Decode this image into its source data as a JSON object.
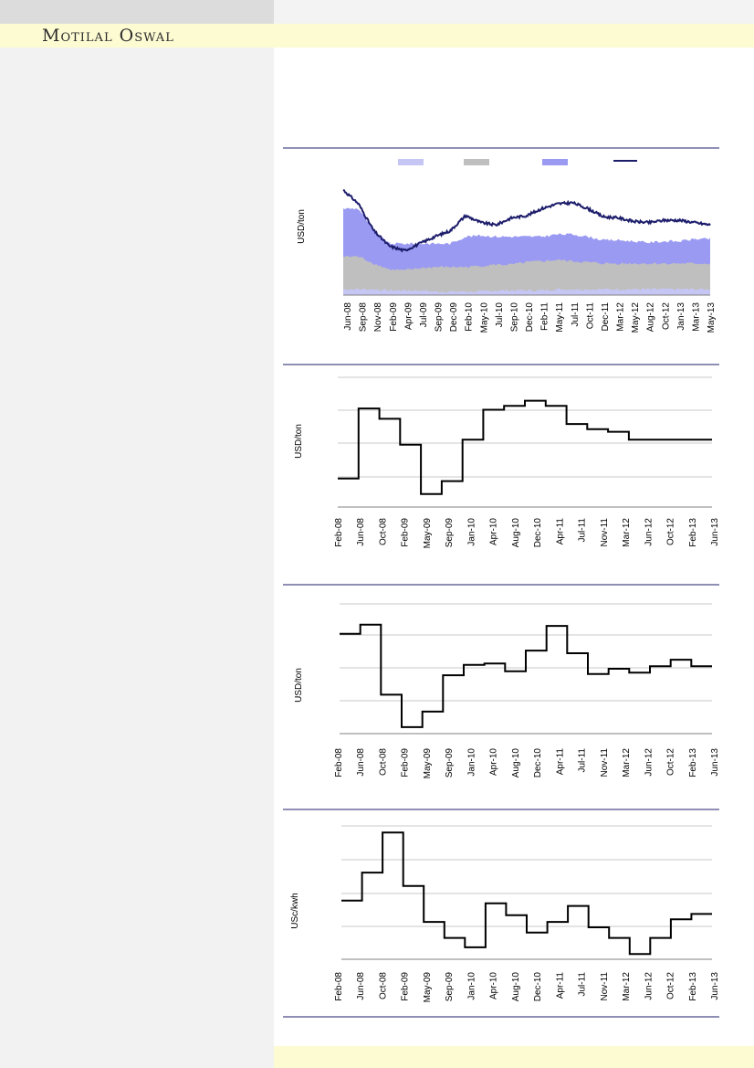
{
  "brand": {
    "name": "Motilal Oswal"
  },
  "colors": {
    "rule": "#1f1f6e",
    "grid": "#c8c8c8",
    "series_light": "#c6c6f5",
    "series_grey": "#bfbfbf",
    "series_blue": "#9a9af2",
    "series_navy": "#1c1c6b",
    "step_line": "#000000"
  },
  "chart_data": [
    {
      "type": "area",
      "ylabel": "USD/ton",
      "legend_position": "top",
      "grid": false,
      "categories": [
        "Jun-08",
        "Sep-08",
        "Nov-08",
        "Feb-09",
        "Apr-09",
        "Jul-09",
        "Sep-09",
        "Dec-09",
        "Feb-10",
        "May-10",
        "Jul-10",
        "Sep-10",
        "Dec-10",
        "Feb-11",
        "May-11",
        "Jul-11",
        "Oct-11",
        "Dec-11",
        "Mar-12",
        "May-12",
        "Aug-12",
        "Oct-12",
        "Jan-13",
        "Mar-13",
        "May-13"
      ],
      "ylim": [
        0,
        100
      ],
      "series": [
        {
          "kind": "area",
          "values": [
            5,
            5,
            5,
            4,
            4,
            4,
            3,
            3,
            3,
            3,
            4,
            4,
            4,
            4,
            5,
            5,
            5,
            5,
            5,
            5,
            5,
            5,
            5,
            5,
            5
          ]
        },
        {
          "kind": "area",
          "values": [
            33,
            33,
            27,
            22,
            21,
            23,
            24,
            24,
            24,
            25,
            26,
            26,
            28,
            29,
            30,
            29,
            28,
            27,
            27,
            27,
            27,
            27,
            27,
            27,
            27
          ]
        },
        {
          "kind": "area",
          "values": [
            74,
            74,
            55,
            44,
            44,
            44,
            44,
            44,
            50,
            51,
            50,
            50,
            50,
            50,
            52,
            52,
            50,
            47,
            47,
            46,
            45,
            46,
            46,
            48,
            48
          ]
        },
        {
          "kind": "line",
          "values": [
            90,
            78,
            55,
            42,
            38,
            44,
            50,
            55,
            68,
            62,
            60,
            66,
            68,
            74,
            78,
            79,
            74,
            67,
            66,
            63,
            62,
            64,
            64,
            62,
            60
          ]
        }
      ]
    },
    {
      "type": "line",
      "ylabel": "USD/ton",
      "grid": true,
      "categories": [
        "Feb-08",
        "Jun-08",
        "Oct-08",
        "Feb-09",
        "May-09",
        "Sep-09",
        "Jan-10",
        "Apr-10",
        "Aug-10",
        "Dec-10",
        "Apr-11",
        "Jul-11",
        "Nov-11",
        "Mar-12",
        "Jun-12",
        "Oct-12",
        "Feb-13",
        "Jun-13"
      ],
      "values": [
        22,
        76,
        68,
        48,
        10,
        20,
        52,
        75,
        78,
        82,
        78,
        64,
        60,
        58,
        52,
        52,
        52,
        52
      ],
      "ylim": [
        0,
        100
      ]
    },
    {
      "type": "line",
      "ylabel": "USD/ton",
      "grid": true,
      "categories": [
        "Feb-08",
        "Jun-08",
        "Oct-08",
        "Feb-09",
        "May-09",
        "Sep-09",
        "Jan-10",
        "Apr-10",
        "Aug-10",
        "Dec-10",
        "Apr-11",
        "Jul-11",
        "Nov-11",
        "Mar-12",
        "Jun-12",
        "Oct-12",
        "Feb-13",
        "Jun-13"
      ],
      "values": [
        77,
        84,
        30,
        5,
        17,
        45,
        53,
        54,
        48,
        64,
        83,
        62,
        46,
        50,
        47,
        52,
        57,
        52
      ],
      "ylim": [
        0,
        100
      ]
    },
    {
      "type": "line",
      "ylabel": "USc/kwh",
      "grid": true,
      "categories": [
        "Feb-08",
        "Jun-08",
        "Oct-08",
        "Feb-09",
        "May-09",
        "Sep-09",
        "Jan-10",
        "Apr-10",
        "Aug-10",
        "Dec-10",
        "Apr-11",
        "Jul-11",
        "Nov-11",
        "Mar-12",
        "Jun-12",
        "Oct-12",
        "Feb-13",
        "Jun-13"
      ],
      "values": [
        44,
        65,
        95,
        55,
        28,
        16,
        9,
        42,
        33,
        20,
        28,
        40,
        24,
        16,
        4,
        16,
        30,
        34
      ],
      "ylim": [
        0,
        100
      ]
    }
  ]
}
